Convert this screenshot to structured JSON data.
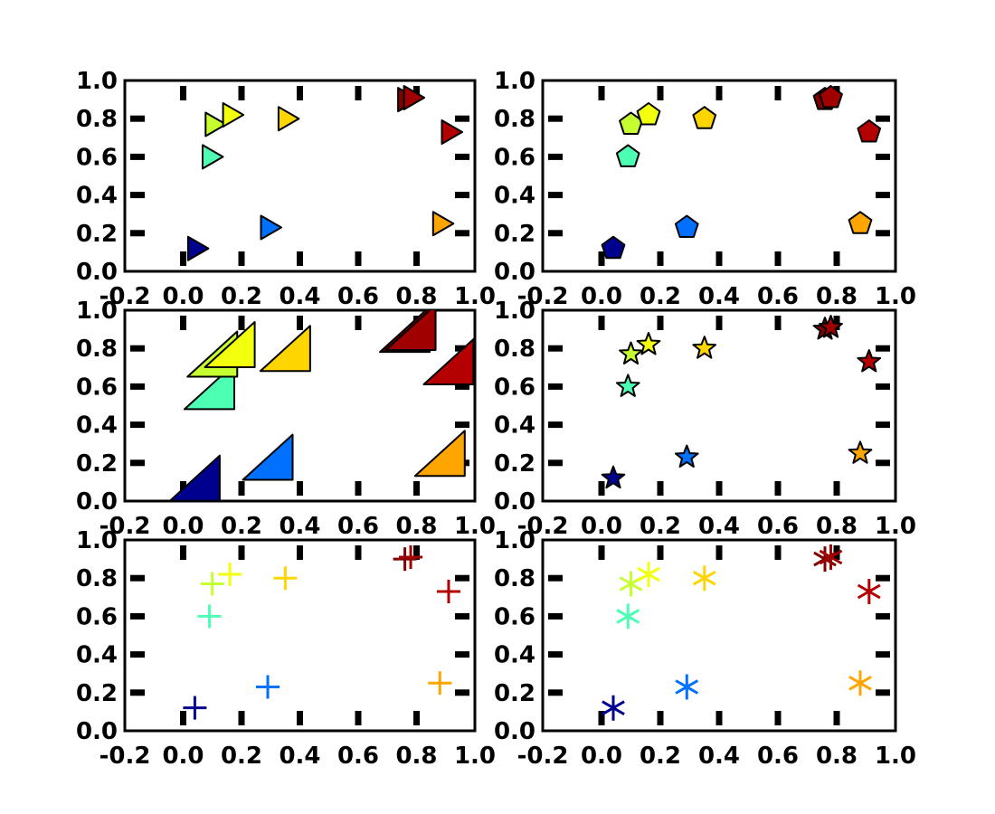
{
  "chart_data": [
    {
      "type": "scatter",
      "marker": "triangle-right"
    },
    {
      "type": "scatter",
      "marker": "pentagon"
    },
    {
      "type": "scatter",
      "marker": "right-triangle-wedge"
    },
    {
      "type": "scatter",
      "marker": "star"
    },
    {
      "type": "scatter",
      "marker": "plus"
    },
    {
      "type": "scatter",
      "marker": "asterisk"
    }
  ],
  "shared": {
    "xlim": [
      -0.2,
      1.0
    ],
    "ylim": [
      0.0,
      1.0
    ],
    "xticks": [
      -0.2,
      0.0,
      0.2,
      0.4,
      0.6,
      0.8,
      1.0
    ],
    "yticks": [
      0.0,
      0.2,
      0.4,
      0.6,
      0.8,
      1.0
    ],
    "xtick_labels": [
      "-0.2",
      "0.0",
      "0.2",
      "0.4",
      "0.6",
      "0.8",
      "1.0"
    ],
    "ytick_labels": [
      "0.0",
      "0.2",
      "0.4",
      "0.6",
      "0.8",
      "1.0"
    ],
    "grid": false,
    "points": [
      {
        "x": 0.04,
        "y": 0.12,
        "color": "#00008f"
      },
      {
        "x": 0.09,
        "y": 0.6,
        "color": "#4dffb3"
      },
      {
        "x": 0.1,
        "y": 0.77,
        "color": "#c6ff30"
      },
      {
        "x": 0.16,
        "y": 0.82,
        "color": "#f2ff0d"
      },
      {
        "x": 0.29,
        "y": 0.23,
        "color": "#0070ff"
      },
      {
        "x": 0.35,
        "y": 0.8,
        "color": "#ffd500"
      },
      {
        "x": 0.76,
        "y": 0.9,
        "color": "#800000"
      },
      {
        "x": 0.78,
        "y": 0.91,
        "color": "#a00000"
      },
      {
        "x": 0.88,
        "y": 0.25,
        "color": "#ffa500"
      },
      {
        "x": 0.91,
        "y": 0.73,
        "color": "#b40000"
      }
    ]
  }
}
